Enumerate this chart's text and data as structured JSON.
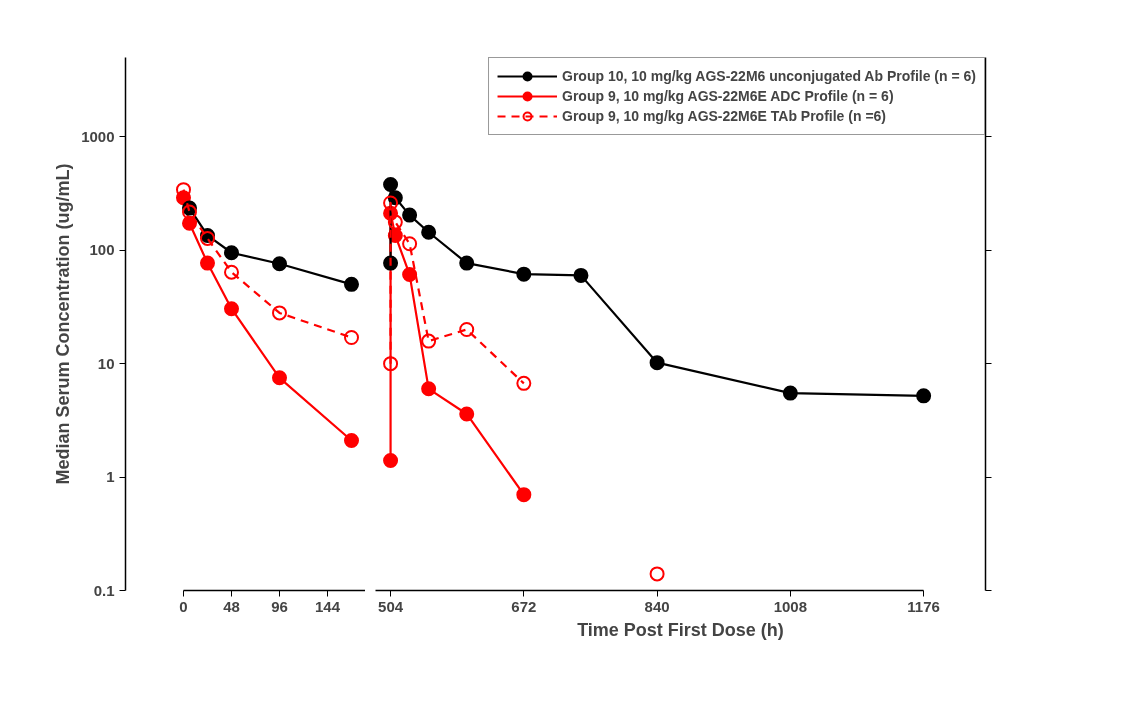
{
  "chart_data": [
    {
      "type": "line",
      "ylabel": "Median Serum Concentration (ug/mL)",
      "log": true,
      "marker": "circle",
      "grid": false,
      "legend": false,
      "xlim": [
        -58,
        182
      ],
      "xticks": [
        0,
        48,
        96,
        144
      ],
      "ylim": [
        0.1,
        5000
      ],
      "yticks": [
        0.1,
        1,
        10,
        100,
        1000
      ],
      "series": [
        {
          "color": "#000000",
          "line_style": "solid",
          "x": [
            6,
            24,
            48,
            96,
            168
          ],
          "values": [
            235,
            135,
            95,
            76,
            50
          ]
        },
        {
          "color": "#ff0000",
          "line_style": "solid",
          "x": [
            0,
            6,
            24,
            48,
            96,
            168
          ],
          "values": [
            290,
            173,
            77,
            30.5,
            7.5,
            2.1
          ]
        },
        {
          "color": "#ff0000",
          "line_style": "dashed",
          "x": [
            0,
            6,
            24,
            48,
            96,
            168
          ],
          "values": [
            342,
            217,
            127,
            64,
            28,
            17
          ]
        }
      ]
    },
    {
      "type": "line",
      "xlabel": "Time Post First Dose (h)",
      "log": true,
      "marker": "circle",
      "grid": false,
      "legend": "top right",
      "tick_labels": "x",
      "xlim": [
        485,
        1254
      ],
      "xticks": [
        504,
        672,
        840,
        1008,
        1176
      ],
      "ylim": [
        0.1,
        5000
      ],
      "yticks": [
        0.1,
        1,
        10,
        100,
        1000
      ],
      "series": [
        {
          "name": "Group 10, 10 mg/kg AGS-22M6 unconjugated Ab Profile (n = 6)",
          "color": "#000000",
          "line_style": "solid",
          "x": [
            504,
            504,
            510,
            528,
            552,
            600,
            672,
            744,
            840,
            1008,
            1176
          ],
          "values": [
            77,
            380,
            290,
            204,
            144,
            77,
            61.5,
            60,
            10.2,
            5.5,
            5.2
          ]
        },
        {
          "name": "Group 9, 10 mg/kg AGS-22M6E ADC Profile (n = 6)",
          "color": "#ff0000",
          "line_style": "solid",
          "x": [
            504,
            504,
            510,
            528,
            552,
            600,
            672
          ],
          "values": [
            1.4,
            212,
            135,
            61,
            6,
            3.6,
            0.7
          ]
        },
        {
          "name": "Group 9, 10 mg/kg AGS-22M6E TAb Profile (n =6)",
          "color": "#ff0000",
          "line_style": "dashed",
          "x": [
            504,
            504,
            510,
            528,
            552,
            600,
            672,
            756,
            840
          ],
          "values": [
            10,
            261,
            177,
            114,
            15.8,
            20,
            6.7,
            null,
            0.14
          ]
        }
      ]
    }
  ]
}
